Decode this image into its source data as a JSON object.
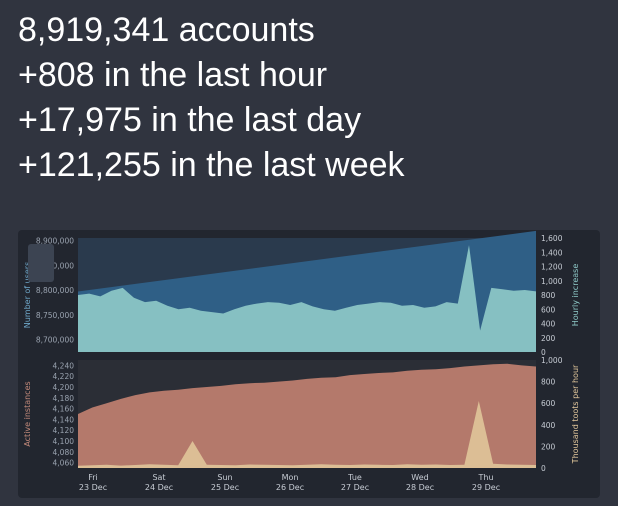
{
  "stats": {
    "total": "8,919,341 accounts",
    "hour": "+808 in the last hour",
    "day": "+17,975 in the last day",
    "week": "+121,255 in the last week"
  },
  "chart_data": [
    {
      "type": "area",
      "ylabel": "Number of users",
      "y2label": "Hourly increase",
      "ylim": [
        8675000,
        8905000
      ],
      "y2lim": [
        0,
        1600
      ],
      "yticks": [
        "8,700,000",
        "8,750,000",
        "8,800,000",
        "8,850,000",
        "8,900,000"
      ],
      "y2ticks": [
        "0",
        "200",
        "400",
        "600",
        "800",
        "1,000",
        "1,200",
        "1,400",
        "1,600"
      ],
      "x_labels": [
        {
          "day": "Fri",
          "date": "23 Dec"
        },
        {
          "day": "Sat",
          "date": "24 Dec"
        },
        {
          "day": "Sun",
          "date": "25 Dec"
        },
        {
          "day": "Mon",
          "date": "26 Dec"
        },
        {
          "day": "Tue",
          "date": "27 Dec"
        },
        {
          "day": "Wed",
          "date": "28 Dec"
        },
        {
          "day": "Thu",
          "date": "29 Dec"
        }
      ],
      "series": [
        {
          "name": "Number of users",
          "color": "#2f5f86",
          "values": [
            8797000,
            8919341
          ]
        },
        {
          "name": "Hourly increase",
          "color": "#8ec9c8",
          "values": [
            800,
            820,
            780,
            860,
            900,
            760,
            700,
            720,
            650,
            600,
            620,
            580,
            560,
            540,
            600,
            650,
            680,
            700,
            690,
            660,
            700,
            640,
            600,
            580,
            620,
            660,
            680,
            700,
            690,
            650,
            660,
            620,
            640,
            700,
            680,
            1500,
            300,
            900,
            880,
            860,
            870,
            850
          ]
        }
      ]
    },
    {
      "type": "area",
      "ylabel": "Active instances",
      "y2label": "Thousand toots per hour",
      "ylim": [
        4050,
        4250
      ],
      "y2lim": [
        0,
        1000
      ],
      "yticks": [
        "4,060",
        "4,080",
        "4,100",
        "4,120",
        "4,140",
        "4,160",
        "4,180",
        "4,200",
        "4,220",
        "4,240"
      ],
      "y2ticks": [
        "0",
        "200",
        "400",
        "600",
        "800",
        "1,000"
      ],
      "series": [
        {
          "name": "Active instances",
          "color": "#b4796b",
          "values": [
            4150,
            4162,
            4170,
            4178,
            4185,
            4190,
            4193,
            4195,
            4198,
            4200,
            4202,
            4205,
            4207,
            4208,
            4210,
            4212,
            4215,
            4217,
            4218,
            4222,
            4224,
            4226,
            4227,
            4230,
            4232,
            4233,
            4235,
            4238,
            4240,
            4242,
            4243,
            4240,
            4238
          ]
        },
        {
          "name": "Thousand toots per hour",
          "color": "#e0c59a",
          "values": [
            20,
            25,
            30,
            22,
            28,
            35,
            30,
            25,
            250,
            30,
            28,
            25,
            32,
            30,
            28,
            26,
            30,
            35,
            30,
            28,
            32,
            30,
            28,
            35,
            30,
            32,
            28,
            30,
            620,
            40,
            32,
            30,
            28
          ]
        }
      ]
    }
  ]
}
